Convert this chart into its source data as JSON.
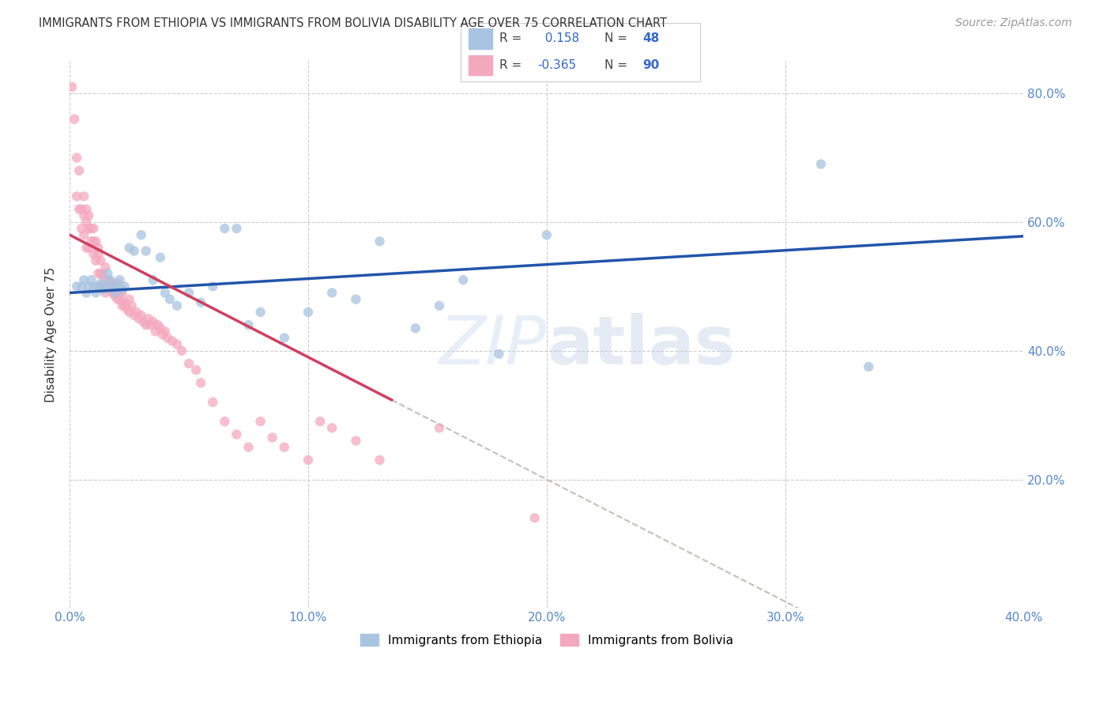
{
  "title": "IMMIGRANTS FROM ETHIOPIA VS IMMIGRANTS FROM BOLIVIA DISABILITY AGE OVER 75 CORRELATION CHART",
  "source": "Source: ZipAtlas.com",
  "ylabel": "Disability Age Over 75",
  "xlim": [
    0.0,
    0.4
  ],
  "ylim": [
    0.0,
    0.85
  ],
  "legend_ethiopia_label": "Immigrants from Ethiopia",
  "legend_bolivia_label": "Immigrants from Bolivia",
  "R_ethiopia": 0.158,
  "N_ethiopia": 48,
  "R_bolivia": -0.365,
  "N_bolivia": 90,
  "color_ethiopia": "#a8c4e0",
  "color_bolivia": "#f4a8be",
  "trendline_ethiopia_color": "#2255aa",
  "trendline_bolivia_color": "#d04060",
  "trendline_bolivia_dashed_color": "#ccbbbb",
  "background_color": "#ffffff",
  "ethiopia_x": [
    0.003,
    0.005,
    0.006,
    0.007,
    0.008,
    0.009,
    0.01,
    0.011,
    0.012,
    0.013,
    0.014,
    0.015,
    0.016,
    0.017,
    0.018,
    0.019,
    0.02,
    0.021,
    0.022,
    0.023,
    0.025,
    0.027,
    0.03,
    0.032,
    0.035,
    0.038,
    0.04,
    0.042,
    0.045,
    0.05,
    0.055,
    0.06,
    0.065,
    0.07,
    0.075,
    0.08,
    0.09,
    0.1,
    0.11,
    0.12,
    0.13,
    0.145,
    0.155,
    0.165,
    0.18,
    0.2,
    0.315,
    0.335
  ],
  "ethiopia_y": [
    0.5,
    0.5,
    0.51,
    0.49,
    0.5,
    0.51,
    0.5,
    0.49,
    0.5,
    0.505,
    0.495,
    0.5,
    0.52,
    0.51,
    0.5,
    0.49,
    0.5,
    0.51,
    0.495,
    0.5,
    0.56,
    0.555,
    0.58,
    0.555,
    0.51,
    0.545,
    0.49,
    0.48,
    0.47,
    0.49,
    0.475,
    0.5,
    0.59,
    0.59,
    0.44,
    0.46,
    0.42,
    0.46,
    0.49,
    0.48,
    0.57,
    0.435,
    0.47,
    0.51,
    0.395,
    0.58,
    0.69,
    0.375
  ],
  "bolivia_x": [
    0.001,
    0.002,
    0.003,
    0.003,
    0.004,
    0.004,
    0.005,
    0.005,
    0.006,
    0.006,
    0.006,
    0.007,
    0.007,
    0.007,
    0.008,
    0.008,
    0.008,
    0.009,
    0.009,
    0.01,
    0.01,
    0.01,
    0.011,
    0.011,
    0.012,
    0.012,
    0.012,
    0.013,
    0.013,
    0.013,
    0.014,
    0.014,
    0.015,
    0.015,
    0.015,
    0.016,
    0.016,
    0.017,
    0.017,
    0.018,
    0.018,
    0.019,
    0.019,
    0.02,
    0.02,
    0.021,
    0.021,
    0.022,
    0.022,
    0.023,
    0.023,
    0.024,
    0.025,
    0.025,
    0.026,
    0.027,
    0.028,
    0.029,
    0.03,
    0.031,
    0.032,
    0.033,
    0.034,
    0.035,
    0.036,
    0.037,
    0.038,
    0.039,
    0.04,
    0.041,
    0.043,
    0.045,
    0.047,
    0.05,
    0.053,
    0.055,
    0.06,
    0.065,
    0.07,
    0.075,
    0.08,
    0.085,
    0.09,
    0.1,
    0.105,
    0.11,
    0.12,
    0.13,
    0.155,
    0.195
  ],
  "bolivia_y": [
    0.81,
    0.76,
    0.64,
    0.7,
    0.62,
    0.68,
    0.62,
    0.59,
    0.61,
    0.64,
    0.58,
    0.6,
    0.56,
    0.62,
    0.59,
    0.56,
    0.61,
    0.57,
    0.59,
    0.55,
    0.57,
    0.59,
    0.54,
    0.57,
    0.55,
    0.52,
    0.56,
    0.52,
    0.54,
    0.5,
    0.52,
    0.5,
    0.51,
    0.49,
    0.53,
    0.505,
    0.51,
    0.495,
    0.5,
    0.49,
    0.505,
    0.485,
    0.49,
    0.48,
    0.505,
    0.49,
    0.48,
    0.47,
    0.49,
    0.475,
    0.47,
    0.465,
    0.48,
    0.46,
    0.47,
    0.455,
    0.46,
    0.45,
    0.455,
    0.445,
    0.44,
    0.45,
    0.44,
    0.445,
    0.43,
    0.44,
    0.435,
    0.425,
    0.43,
    0.42,
    0.415,
    0.41,
    0.4,
    0.38,
    0.37,
    0.35,
    0.32,
    0.29,
    0.27,
    0.25,
    0.29,
    0.265,
    0.25,
    0.23,
    0.29,
    0.28,
    0.26,
    0.23,
    0.28,
    0.14
  ]
}
